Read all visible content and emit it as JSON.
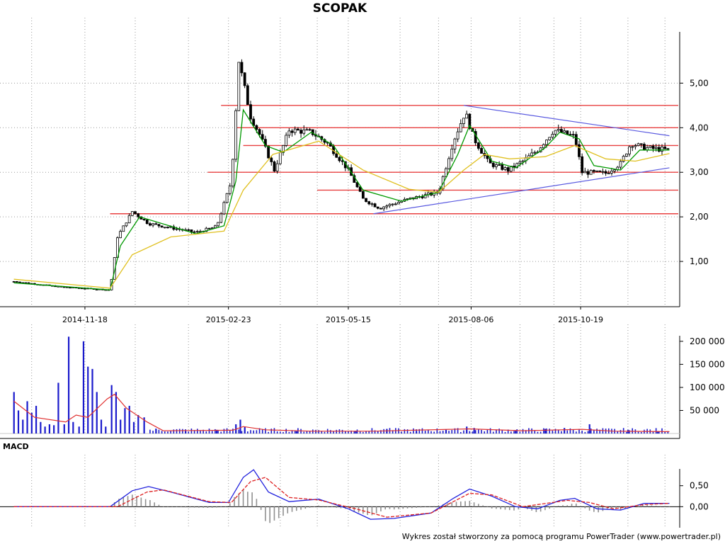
{
  "chart_data": [
    {
      "type": "candlestick",
      "title": "SCOPAK",
      "x_tick_labels": [
        "2014-11-18",
        "2015-02-23",
        "2015-05-15",
        "2015-08-06",
        "2015-10-19"
      ],
      "y_ticks": [
        "1,00",
        "2,00",
        "3,00",
        "4,00",
        "5,00"
      ],
      "y_tick_values": [
        1,
        2,
        3,
        4,
        5
      ],
      "ylim": [
        0,
        6.15
      ],
      "support_resistance_levels": [
        2.07,
        2.6,
        3.0,
        3.6,
        4.0,
        4.5
      ],
      "trendlines": [
        {
          "from": {
            "x": "2015-06-01",
            "y": 2.07
          },
          "to": {
            "x": "2015-12-18",
            "y": 3.1
          }
        },
        {
          "from": {
            "x": "2015-08-01",
            "y": 4.5
          },
          "to": {
            "x": "2015-12-18",
            "y": 3.82
          }
        }
      ],
      "price_path": [
        [
          "2014-10-01",
          0.55
        ],
        [
          "2014-11-01",
          0.43
        ],
        [
          "2014-12-05",
          0.36
        ],
        [
          "2014-12-10",
          1.55
        ],
        [
          "2014-12-20",
          2.12
        ],
        [
          "2014-12-31",
          1.85
        ],
        [
          "2015-02-01",
          1.65
        ],
        [
          "2015-02-15",
          1.78
        ],
        [
          "2015-02-25",
          2.8
        ],
        [
          "2015-03-02",
          5.5
        ],
        [
          "2015-03-10",
          4.25
        ],
        [
          "2015-03-16",
          3.85
        ],
        [
          "2015-03-26",
          3.05
        ],
        [
          "2015-04-05",
          3.95
        ],
        [
          "2015-04-20",
          3.9
        ],
        [
          "2015-05-01",
          3.65
        ],
        [
          "2015-05-15",
          3.05
        ],
        [
          "2015-05-25",
          2.4
        ],
        [
          "2015-06-05",
          2.2
        ],
        [
          "2015-06-25",
          2.4
        ],
        [
          "2015-07-15",
          2.55
        ],
        [
          "2015-07-25",
          3.7
        ],
        [
          "2015-08-02",
          4.35
        ],
        [
          "2015-08-08",
          3.75
        ],
        [
          "2015-08-18",
          3.2
        ],
        [
          "2015-08-31",
          3.05
        ],
        [
          "2015-09-10",
          3.25
        ],
        [
          "2015-09-20",
          3.5
        ],
        [
          "2015-10-01",
          3.95
        ],
        [
          "2015-10-15",
          3.8
        ],
        [
          "2015-10-20",
          3.0
        ],
        [
          "2015-11-05",
          2.98
        ],
        [
          "2015-11-15",
          3.2
        ],
        [
          "2015-11-22",
          3.65
        ],
        [
          "2015-12-01",
          3.55
        ],
        [
          "2015-12-18",
          3.5
        ]
      ],
      "moving_averages": [
        {
          "color": "#009900",
          "points": [
            [
              "2014-10-01",
              0.52
            ],
            [
              "2014-12-05",
              0.36
            ],
            [
              "2014-12-12",
              1.35
            ],
            [
              "2014-12-25",
              2.0
            ],
            [
              "2015-02-01",
              1.62
            ],
            [
              "2015-02-20",
              1.8
            ],
            [
              "2015-02-28",
              2.8
            ],
            [
              "2015-03-05",
              4.4
            ],
            [
              "2015-03-20",
              3.6
            ],
            [
              "2015-04-01",
              3.45
            ],
            [
              "2015-04-20",
              3.9
            ],
            [
              "2015-05-05",
              3.6
            ],
            [
              "2015-05-25",
              2.6
            ],
            [
              "2015-06-20",
              2.35
            ],
            [
              "2015-07-15",
              2.55
            ],
            [
              "2015-07-28",
              3.4
            ],
            [
              "2015-08-05",
              4.05
            ],
            [
              "2015-08-20",
              3.25
            ],
            [
              "2015-09-05",
              3.1
            ],
            [
              "2015-09-25",
              3.55
            ],
            [
              "2015-10-05",
              3.9
            ],
            [
              "2015-10-18",
              3.75
            ],
            [
              "2015-10-28",
              3.15
            ],
            [
              "2015-11-15",
              3.05
            ],
            [
              "2015-11-28",
              3.5
            ],
            [
              "2015-12-18",
              3.5
            ]
          ]
        },
        {
          "color": "#e0c020",
          "points": [
            [
              "2014-10-01",
              0.6
            ],
            [
              "2014-12-05",
              0.4
            ],
            [
              "2014-12-20",
              1.15
            ],
            [
              "2015-01-15",
              1.55
            ],
            [
              "2015-02-20",
              1.68
            ],
            [
              "2015-03-05",
              2.6
            ],
            [
              "2015-03-25",
              3.4
            ],
            [
              "2015-04-25",
              3.7
            ],
            [
              "2015-05-25",
              3.05
            ],
            [
              "2015-06-25",
              2.62
            ],
            [
              "2015-07-15",
              2.55
            ],
            [
              "2015-08-01",
              3.05
            ],
            [
              "2015-08-15",
              3.4
            ],
            [
              "2015-09-01",
              3.3
            ],
            [
              "2015-09-25",
              3.35
            ],
            [
              "2015-10-15",
              3.6
            ],
            [
              "2015-11-05",
              3.3
            ],
            [
              "2015-11-25",
              3.25
            ],
            [
              "2015-12-18",
              3.42
            ]
          ]
        }
      ]
    },
    {
      "type": "bar",
      "name": "volume",
      "y_ticks": [
        "50 000",
        "100 000",
        "150 000",
        "200 000"
      ],
      "y_tick_values": [
        50000,
        100000,
        150000,
        200000
      ],
      "ylim": [
        0,
        212000
      ],
      "bar_color": "#1a1acc",
      "bars": [
        [
          "2014-10-01",
          90000
        ],
        [
          "2014-10-04",
          50000
        ],
        [
          "2014-10-07",
          30000
        ],
        [
          "2014-10-10",
          70000
        ],
        [
          "2014-10-13",
          45000
        ],
        [
          "2014-10-16",
          60000
        ],
        [
          "2014-10-19",
          25000
        ],
        [
          "2014-10-22",
          15000
        ],
        [
          "2014-10-25",
          20000
        ],
        [
          "2014-10-28",
          18000
        ],
        [
          "2014-10-31",
          110000
        ],
        [
          "2014-11-04",
          20000
        ],
        [
          "2014-11-07",
          210000
        ],
        [
          "2014-11-10",
          25000
        ],
        [
          "2014-11-14",
          15000
        ],
        [
          "2014-11-17",
          200000
        ],
        [
          "2014-11-20",
          145000
        ],
        [
          "2014-11-23",
          140000
        ],
        [
          "2014-11-26",
          90000
        ],
        [
          "2014-11-29",
          30000
        ],
        [
          "2014-12-02",
          15000
        ],
        [
          "2014-12-06",
          105000
        ],
        [
          "2014-12-09",
          90000
        ],
        [
          "2014-12-12",
          30000
        ],
        [
          "2014-12-15",
          55000
        ],
        [
          "2014-12-18",
          60000
        ],
        [
          "2014-12-21",
          25000
        ],
        [
          "2014-12-24",
          40000
        ],
        [
          "2014-12-28",
          35000
        ],
        [
          "2015-01-05",
          10000
        ],
        [
          "2015-01-25",
          5000
        ],
        [
          "2015-02-15",
          8000
        ],
        [
          "2015-02-28",
          20000
        ],
        [
          "2015-03-03",
          30000
        ],
        [
          "2015-03-06",
          15000
        ],
        [
          "2015-04-10",
          5000
        ],
        [
          "2015-05-20",
          6000
        ],
        [
          "2015-06-10",
          10000
        ],
        [
          "2015-06-30",
          5000
        ],
        [
          "2015-07-20",
          8000
        ],
        [
          "2015-08-03",
          15000
        ],
        [
          "2015-08-08",
          12000
        ],
        [
          "2015-09-05",
          7000
        ],
        [
          "2015-09-25",
          10000
        ],
        [
          "2015-10-08",
          12000
        ],
        [
          "2015-10-25",
          20000
        ],
        [
          "2015-11-20",
          8000
        ],
        [
          "2015-12-10",
          5000
        ]
      ],
      "moving_average": {
        "color": "#e03030",
        "points": [
          [
            "2014-10-01",
            70000
          ],
          [
            "2014-10-15",
            35000
          ],
          [
            "2014-11-05",
            25000
          ],
          [
            "2014-11-12",
            40000
          ],
          [
            "2014-11-20",
            35000
          ],
          [
            "2014-12-03",
            75000
          ],
          [
            "2014-12-08",
            85000
          ],
          [
            "2014-12-16",
            55000
          ],
          [
            "2014-12-30",
            25000
          ],
          [
            "2015-01-10",
            6000
          ],
          [
            "2015-02-26",
            7000
          ],
          [
            "2015-03-05",
            15000
          ],
          [
            "2015-03-20",
            8000
          ],
          [
            "2015-04-20",
            5000
          ],
          [
            "2015-06-01",
            5000
          ],
          [
            "2015-08-05",
            10000
          ],
          [
            "2015-09-10",
            6000
          ],
          [
            "2015-10-20",
            9000
          ],
          [
            "2015-11-10",
            5000
          ],
          [
            "2015-12-18",
            4000
          ]
        ]
      }
    },
    {
      "type": "line",
      "title": "MACD",
      "y_ticks": [
        "0,00",
        "0,50"
      ],
      "y_tick_values": [
        0,
        0.5
      ],
      "ylim": [
        -0.45,
        0.9
      ],
      "histogram_color": "#909090",
      "series": [
        {
          "color": "#2020dd",
          "points": [
            [
              "2014-10-01",
              0.0
            ],
            [
              "2014-12-05",
              0.0
            ],
            [
              "2014-12-20",
              0.38
            ],
            [
              "2014-12-31",
              0.48
            ],
            [
              "2015-01-15",
              0.35
            ],
            [
              "2015-02-10",
              0.1
            ],
            [
              "2015-02-23",
              0.1
            ],
            [
              "2015-03-05",
              0.7
            ],
            [
              "2015-03-12",
              0.88
            ],
            [
              "2015-03-22",
              0.35
            ],
            [
              "2015-04-05",
              0.12
            ],
            [
              "2015-04-25",
              0.18
            ],
            [
              "2015-05-15",
              -0.05
            ],
            [
              "2015-05-30",
              -0.3
            ],
            [
              "2015-06-15",
              -0.28
            ],
            [
              "2015-07-10",
              -0.15
            ],
            [
              "2015-07-25",
              0.2
            ],
            [
              "2015-08-05",
              0.42
            ],
            [
              "2015-08-20",
              0.25
            ],
            [
              "2015-09-05",
              0.0
            ],
            [
              "2015-09-20",
              -0.05
            ],
            [
              "2015-10-05",
              0.15
            ],
            [
              "2015-10-15",
              0.2
            ],
            [
              "2015-10-30",
              -0.05
            ],
            [
              "2015-11-15",
              -0.08
            ],
            [
              "2015-12-01",
              0.08
            ],
            [
              "2015-12-18",
              0.08
            ]
          ]
        },
        {
          "color": "#dd2020",
          "points": [
            [
              "2014-10-01",
              0.0
            ],
            [
              "2014-12-10",
              0.0
            ],
            [
              "2014-12-30",
              0.35
            ],
            [
              "2015-01-10",
              0.4
            ],
            [
              "2015-02-10",
              0.12
            ],
            [
              "2015-02-25",
              0.1
            ],
            [
              "2015-03-10",
              0.6
            ],
            [
              "2015-03-20",
              0.7
            ],
            [
              "2015-04-05",
              0.22
            ],
            [
              "2015-04-25",
              0.16
            ],
            [
              "2015-05-20",
              -0.05
            ],
            [
              "2015-06-10",
              -0.25
            ],
            [
              "2015-07-10",
              -0.15
            ],
            [
              "2015-08-05",
              0.32
            ],
            [
              "2015-08-20",
              0.28
            ],
            [
              "2015-09-10",
              0.0
            ],
            [
              "2015-10-10",
              0.15
            ],
            [
              "2015-10-25",
              0.1
            ],
            [
              "2015-11-10",
              -0.05
            ],
            [
              "2015-12-01",
              0.05
            ],
            [
              "2015-12-18",
              0.08
            ]
          ]
        }
      ]
    }
  ],
  "footer": "Wykres został stworzony za pomocą programu PowerTrader (www.powertrader.pl)",
  "macd_label": "MACD"
}
